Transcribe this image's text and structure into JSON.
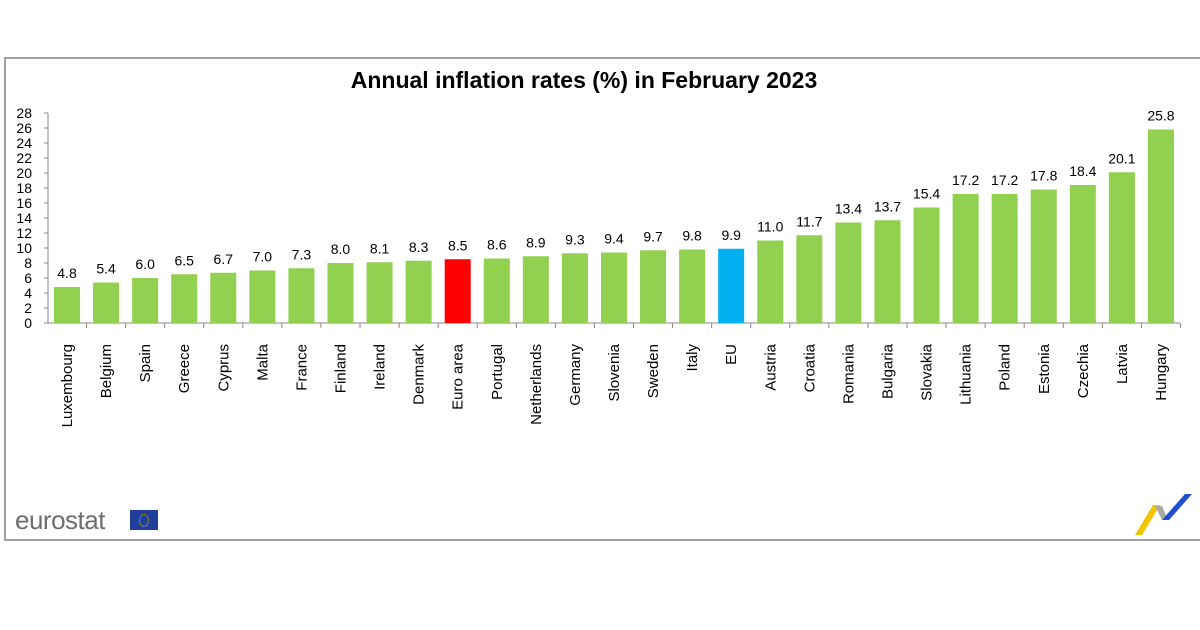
{
  "chart_data": {
    "type": "bar",
    "title": "Annual inflation rates (%) in February 2023",
    "xlabel": "",
    "ylabel": "",
    "ylim": [
      0,
      28
    ],
    "yticks": [
      0,
      2,
      4,
      6,
      8,
      10,
      12,
      14,
      16,
      18,
      20,
      22,
      24,
      26,
      28
    ],
    "grid": false,
    "categories": [
      "Luxembourg",
      "Belgium",
      "Spain",
      "Greece",
      "Cyprus",
      "Malta",
      "France",
      "Finland",
      "Ireland",
      "Denmark",
      "Euro area",
      "Portugal",
      "Netherlands",
      "Germany",
      "Slovenia",
      "Sweden",
      "Italy",
      "EU",
      "Austria",
      "Croatia",
      "Romania",
      "Bulgaria",
      "Slovakia",
      "Lithuania",
      "Poland",
      "Estonia",
      "Czechia",
      "Latvia",
      "Hungary"
    ],
    "values": [
      4.8,
      5.4,
      6.0,
      6.5,
      6.7,
      7.0,
      7.3,
      8.0,
      8.1,
      8.3,
      8.5,
      8.6,
      8.9,
      9.3,
      9.4,
      9.7,
      9.8,
      9.9,
      11.0,
      11.7,
      13.4,
      13.7,
      15.4,
      17.2,
      17.2,
      17.8,
      18.4,
      20.1,
      25.8
    ],
    "data_labels": [
      "4.8",
      "5.4",
      "6.0",
      "6.5",
      "6.7",
      "7.0",
      "7.3",
      "8.0",
      "8.1",
      "8.3",
      "8.5",
      "8.6",
      "8.9",
      "9.3",
      "9.4",
      "9.7",
      "9.8",
      "9.9",
      "11.0",
      "11.7",
      "13.4",
      "13.7",
      "15.4",
      "17.2",
      "17.2",
      "17.8",
      "18.4",
      "20.1",
      "25.8"
    ],
    "colors": {
      "default": "#92d050",
      "Euro area": "#ff0000",
      "EU": "#00b0f0"
    }
  },
  "branding": {
    "logo": "eurostat",
    "logo_icon": "eu-flag",
    "corner_icon": "eurostat-chart-mark"
  }
}
